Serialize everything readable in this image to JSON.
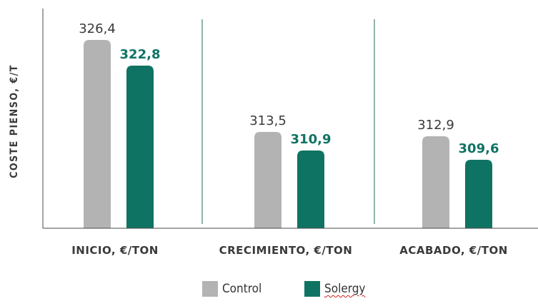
{
  "colors": {
    "control": "#b3b3b3",
    "solergy": "#0f7363",
    "axis": "#4a4a4a",
    "divider": "#1f6a5a",
    "text": "#3a3a3a"
  },
  "chart_data": {
    "type": "bar",
    "ylabel": "COSTE PIENSO, €/T",
    "xlabel": "",
    "categories": [
      "INICIO, €/TON",
      "CRECIMIENTO, €/TON",
      "ACABADO, €/TON"
    ],
    "series": [
      {
        "name": "Control",
        "values": [
          326.4,
          313.5,
          312.9
        ],
        "labels": [
          "326,4",
          "313,5",
          "312,9"
        ]
      },
      {
        "name": "Solergy",
        "values": [
          322.8,
          310.9,
          309.6
        ],
        "labels": [
          "322,8",
          "310,9",
          "309,6"
        ]
      }
    ],
    "ylim": [
      300,
      328
    ],
    "grid": false,
    "legend": "bottom-center"
  }
}
